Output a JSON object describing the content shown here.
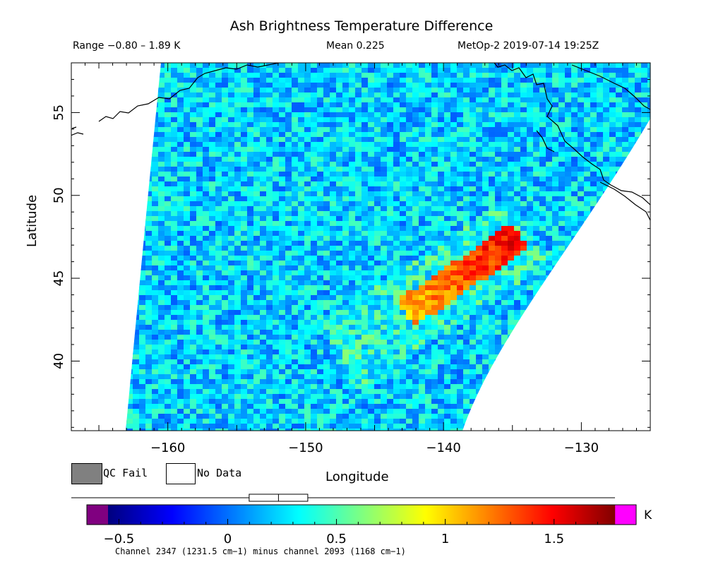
{
  "header": {
    "title": "Ash Brightness Temperature Difference",
    "range": "Range −0.80 – 1.89 K",
    "mean": "Mean 0.225",
    "satellite_time": "MetOp-2 2019-07-14 19:25Z"
  },
  "axes": {
    "xlabel": "Longitude",
    "ylabel": "Latitude",
    "x_ticks": [
      "−160",
      "−150",
      "−140",
      "−130"
    ],
    "x_tick_values": [
      -160,
      -150,
      -140,
      -130
    ],
    "y_ticks": [
      "40",
      "45",
      "50",
      "55"
    ],
    "y_tick_values": [
      40,
      45,
      50,
      55
    ],
    "lon_range": [
      -167,
      -125
    ],
    "lat_range": [
      35.8,
      58
    ]
  },
  "legend": {
    "qc_fail_label": "QC Fail",
    "no_data_label": "No Data",
    "qc_fail_color": "#808080",
    "no_data_color": "#ffffff"
  },
  "colorbar": {
    "unit": "K",
    "range": [
      -0.8,
      1.89
    ],
    "min": -0.8,
    "max": 1.89,
    "tick_labels": [
      "−0.5",
      "0",
      "0.5",
      "1",
      "1.5"
    ],
    "tick_values": [
      -0.5,
      0,
      0.5,
      1,
      1.5
    ],
    "caption": "Channel 2347 (1231.5 cm−1) minus channel 2093 (1168 cm−1)",
    "under_color": "#800080",
    "over_color": "#ff00ff",
    "box_stats": {
      "whisker_low": -0.8,
      "q1": 0.08,
      "median": 0.225,
      "q3": 0.37,
      "whisker_high": 1.89
    }
  },
  "map_data": {
    "colormap": "jet",
    "background_mean_K": 0.225,
    "ash_plume": {
      "description_values_K": [
        1.2,
        1.89
      ],
      "lon_range": [
        -143,
        -135
      ],
      "lat_range": [
        43,
        47.5
      ]
    }
  }
}
